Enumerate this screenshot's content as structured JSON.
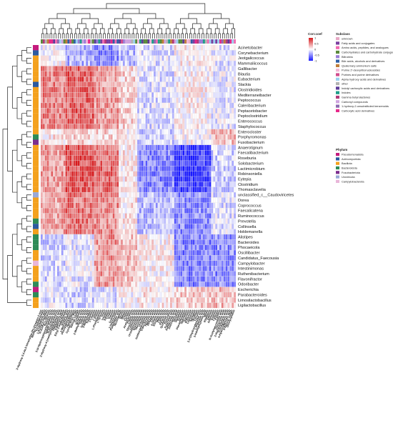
{
  "chart_data": {
    "type": "heatmap",
    "title": "",
    "xlabel": "",
    "ylabel": "",
    "colorbar": {
      "title": "Corr.coef",
      "ticks": [
        "1",
        "0.5",
        "0",
        "-0.5",
        "-1"
      ],
      "range": [
        -1,
        1
      ],
      "colors": {
        "high": "#d7191c",
        "mid": "#ffffff",
        "low": "#1a1aff"
      }
    },
    "rows": [
      "Acinetobacter",
      "Corynebacterium",
      "Jeotgalicoccus",
      "Mammaliicoccus",
      "Gallibacter",
      "Blautia",
      "Eubacterium",
      "Slackia",
      "Clostridioides",
      "Mediterraneibacter",
      "Peptococcus",
      "Caleribacterium",
      "Peptacetobacter",
      "Peptoclostridium",
      "Enterococcus",
      "Staphylococcus",
      "Enterocloster",
      "Porphyromonas",
      "Fusobacterium",
      "Anaerotignum",
      "Faecalibacterium",
      "Roseburia",
      "Solobacterium",
      "Lactimicrobium",
      "Robinsoniella",
      "Eytepia",
      "Clostridium",
      "Thomasclavelia",
      "unclassified_c__Caudoviricetes",
      "Dorea",
      "Coprococcus",
      "Faecalicatena",
      "Ruminococcus",
      "Prevotella",
      "Collinsella",
      "Holdemanella",
      "Alistipes",
      "Bacteroides",
      "Phocaeicola",
      "Oscillibacter",
      "Candidatus_Faecousia",
      "Campylobacter",
      "Intestinimonas",
      "Ruthenibacterium",
      "Flavonifractor",
      "Odoribacter",
      "Escherichia",
      "Parabacteroides",
      "Limosilactobacillus",
      "Ligilactobacillus"
    ],
    "columns": [
      "3-Hydroxy-3,4,4a,5-tetrahydro-2H-chromen-2-one",
      "Methyl 3-Iodobenzoate",
      "Tricarballylic acid",
      "1-Acetyl-2-naphthol",
      "N-Acetyl-L-tyrosine",
      "Salicylic acid",
      "3-(4-Hydroxyphenyl)propionic acid",
      "Indole-3-acetic acid",
      "N-Acetylputrescine",
      "2-Hydroxy-4-(methylthio)butanoic acid",
      "Phenyllactic acid",
      "5-Methylcytidine",
      "Ethyl 3-oxobutanoate",
      "Glutaric acid",
      "1-Methylhistamine",
      "Phenylacetylglycine",
      "Hypoxanthine",
      "Cyclo(L-Pro-L-Phe)",
      "Indoxyl sulfate",
      "Creatinine",
      "Butyric acid",
      "2-Methylbutyric acid",
      "Valeric acid",
      "Isovaleric acid",
      "3-Methylindole",
      "Tryptamine",
      "L-Leucine",
      "L-Valine",
      "L-Proline",
      "L-Phenylalanine",
      "L-Tyrosine",
      "Uracil",
      "Thymine",
      "Xanthine",
      "Uridine",
      "Inosine",
      "Guanosine",
      "2-Deoxyuridine",
      "Pantothenic acid",
      "Nicotinamide",
      "Taurine",
      "Betaine",
      "Choline",
      "Carnitine",
      "Acetylcarnitine",
      "Cholic acid",
      "Deoxycholic acid",
      "Lithocholic acid",
      "Ursodeoxycholic acid",
      "Glycocholic acid",
      "Taurocholic acid",
      "Urocanic acid",
      "Imidazolepropionic acid",
      "Trans-ferulic acid",
      "Hippuric acid",
      "Benzoic acid",
      "Citric acid",
      "Fumaric acid",
      "Succinic acid",
      "Malic acid",
      "Lactic acid",
      "Pyruvic acid",
      "Quinolinic acid",
      "Kynurenine",
      "Kynurenic acid",
      "Xanthurenic acid",
      "Anthranilic acid",
      "Serotonin",
      "Histamine",
      "Tyramine",
      "Phenethylamine",
      "Spermidine",
      "Spermine",
      "Putrescine",
      "Cadaverine",
      "Agmatine",
      "Ornithine",
      "Citrulline",
      "2,4-Dihydroxybenzoic acid",
      "L-Pipecolic acid",
      "3-Indolepropionic acid",
      "Biotin",
      "Riboflavin",
      "Adenine",
      "Adenosine",
      "Guanine",
      "Cytosine",
      "Cytidine",
      "N-Acetylneuraminic acid",
      "Glucuronic acid",
      "3-Hydroxybutyric acid",
      "2-Oxoglutaric acid",
      "4-Hydroxybenzoic acid",
      "3-Indoxyl sulfate",
      "Deoxycytidine"
    ],
    "subclass_legend": {
      "title": "Subclass",
      "items": [
        {
          "label": "unknown",
          "color": "#e8a9c6"
        },
        {
          "label": "Fatty acids and conjugates",
          "color": "#7b3fa0"
        },
        {
          "label": "Amino acids, peptides, and analogues",
          "color": "#f06ab0"
        },
        {
          "label": "Carbohydrates and carbohydrate conjugates",
          "color": "#5b8a3c"
        },
        {
          "label": "Bilirubins",
          "color": "#9a7ed6"
        },
        {
          "label": "Bile acids, alcohols and derivatives",
          "color": "#2f5fa8"
        },
        {
          "label": "Quaternary ammonium salts",
          "color": "#c07e3a"
        },
        {
          "label": "Purine 2'-deoxyribonucleosides",
          "color": "#f3b7d7"
        },
        {
          "label": "Purines and purine derivatives",
          "color": "#d24b8c"
        },
        {
          "label": "Alpha hydroxy acids and derivatives",
          "color": "#9bd0ef"
        },
        {
          "label": "other",
          "color": "#b3b3b3"
        },
        {
          "label": "Indolyl carboxylic acids and derivatives",
          "color": "#5e3c99"
        },
        {
          "label": "Indoles",
          "color": "#1f9e89"
        },
        {
          "label": "Gamma butyrolactones",
          "color": "#b23a7a"
        },
        {
          "label": "Carbonyl compounds",
          "color": "#cfa3e0"
        },
        {
          "label": "1-hydroxy-2-unsubstituted benzenoids",
          "color": "#8c6bb1"
        },
        {
          "label": "Carboxylic acid derivatives",
          "color": "#e7298a"
        }
      ]
    },
    "phylum_legend": {
      "title": "Phylum",
      "items": [
        {
          "label": "Pseudomonadota",
          "color": "#c51b7d"
        },
        {
          "label": "Actinomycetota",
          "color": "#2c5aa0"
        },
        {
          "label": "Bacillota",
          "color": "#f4a11d"
        },
        {
          "label": "Bacteroidota",
          "color": "#2e8b57"
        },
        {
          "label": "Fusobacteriota",
          "color": "#7b2d8e"
        },
        {
          "label": "Uroviricota",
          "color": "#9aa9d6"
        },
        {
          "label": "Campylobacterota",
          "color": "#e9b6d9"
        }
      ]
    },
    "row_phylum": [
      "Pseudomonadota",
      "Actinomycetota",
      "Bacillota",
      "Bacillota",
      "Bacillota",
      "Bacillota",
      "Bacillota",
      "Actinomycetota",
      "Bacillota",
      "Bacillota",
      "Bacillota",
      "Bacillota",
      "Bacillota",
      "Bacillota",
      "Bacillota",
      "Bacillota",
      "Bacillota",
      "Bacteroidota",
      "Fusobacteriota",
      "Bacillota",
      "Bacillota",
      "Bacillota",
      "Bacillota",
      "Bacillota",
      "Bacillota",
      "Bacillota",
      "Bacillota",
      "Bacillota",
      "Uroviricota",
      "Bacillota",
      "Bacillota",
      "Bacillota",
      "Bacillota",
      "Bacteroidota",
      "Actinomycetota",
      "Bacillota",
      "Bacteroidota",
      "Bacteroidota",
      "Bacteroidota",
      "Bacillota",
      "Bacillota",
      "Campylobacterota",
      "Bacillota",
      "Bacillota",
      "Bacillota",
      "Bacteroidota",
      "Pseudomonadota",
      "Bacteroidota",
      "Bacillota",
      "Bacillota"
    ],
    "clusters": {
      "row_groups": [
        {
          "rows": [
            0,
            3
          ],
          "pattern": [
            0.0,
            -0.35,
            -0.5,
            -0.3,
            -0.15,
            0.05,
            -0.1
          ]
        },
        {
          "rows": [
            4,
            15
          ],
          "pattern": [
            0.55,
            0.7,
            0.45,
            0.2,
            -0.15,
            0.05,
            -0.1
          ]
        },
        {
          "rows": [
            16,
            18
          ],
          "pattern": [
            0.1,
            0.2,
            0.2,
            0.05,
            -0.2,
            0.0,
            0.3
          ]
        },
        {
          "rows": [
            19,
            27
          ],
          "pattern": [
            0.45,
            0.75,
            0.65,
            0.1,
            -0.55,
            -0.85,
            -0.2
          ]
        },
        {
          "rows": [
            28,
            35
          ],
          "pattern": [
            0.4,
            0.6,
            0.5,
            0.1,
            -0.3,
            -0.5,
            -0.15
          ]
        },
        {
          "rows": [
            36,
            45
          ],
          "pattern": [
            -0.2,
            -0.1,
            0.45,
            0.3,
            0.05,
            -0.55,
            -0.5
          ]
        },
        {
          "rows": [
            46,
            49
          ],
          "pattern": [
            -0.1,
            -0.2,
            -0.15,
            0.0,
            0.1,
            0.2,
            0.3
          ]
        }
      ],
      "col_groups": [
        [
          0,
          11
        ],
        [
          12,
          25
        ],
        [
          26,
          37
        ],
        [
          38,
          46
        ],
        [
          47,
          64
        ],
        [
          65,
          82
        ],
        [
          83,
          94
        ]
      ]
    }
  }
}
